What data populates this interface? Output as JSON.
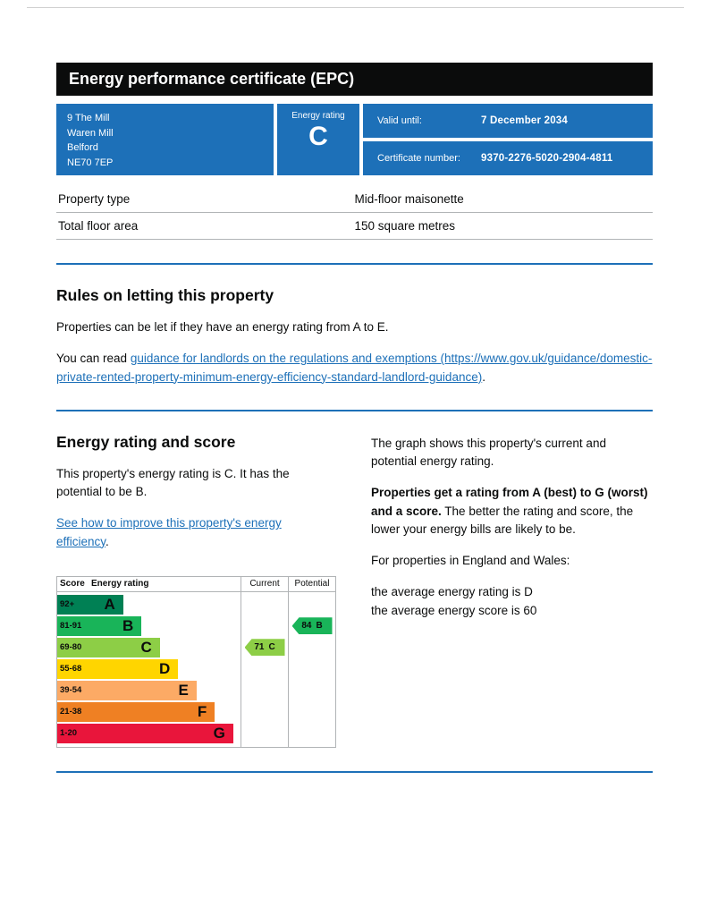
{
  "header": {
    "title": "Energy performance certificate (EPC)"
  },
  "summary": {
    "address": [
      "9 The Mill",
      "Waren Mill",
      "Belford",
      "NE70 7EP"
    ],
    "rating_label": "Energy rating",
    "rating": "C",
    "valid_until_label": "Valid until:",
    "valid_until": "7 December 2034",
    "cert_number_label": "Certificate number:",
    "cert_number": "9370-2276-5020-2904-4811"
  },
  "property": {
    "type_label": "Property type",
    "type_value": "Mid-floor maisonette",
    "area_label": "Total floor area",
    "area_value": "150 square metres"
  },
  "rules": {
    "heading": "Rules on letting this property",
    "para1": "Properties can be let if they have an energy rating from A to E.",
    "para2_prefix": "You can read ",
    "para2_link": "guidance for landlords on the regulations and exemptions (https://www.gov.uk/guidance/domestic-private-rented-property-minimum-energy-efficiency-standard-landlord-guidance)",
    "para2_suffix": "."
  },
  "rating_section": {
    "heading": "Energy rating and score",
    "para1": "This property's energy rating is C. It has the potential to be B.",
    "link": "See how to improve this property's energy efficiency",
    "link_suffix": ".",
    "right_para1": "The graph shows this property's current and potential energy rating.",
    "right_para2_bold": "Properties get a rating from A (best) to G (worst) and a score.",
    "right_para2_rest": " The better the rating and score, the lower your energy bills are likely to be.",
    "right_para3": "For properties in England and Wales:",
    "right_para4": "the average energy rating is D",
    "right_para5": "the average energy score is 60"
  },
  "chart_data": {
    "type": "bar",
    "variant": "epc-energy-rating-bands",
    "columns": [
      "Score",
      "Energy rating",
      "Current",
      "Potential"
    ],
    "bands": [
      {
        "score": "92+",
        "letter": "A",
        "color": "#008054",
        "width_pct": 36
      },
      {
        "score": "81-91",
        "letter": "B",
        "color": "#19b459",
        "width_pct": 46
      },
      {
        "score": "69-80",
        "letter": "C",
        "color": "#8dce46",
        "width_pct": 56
      },
      {
        "score": "55-68",
        "letter": "D",
        "color": "#ffd500",
        "width_pct": 66
      },
      {
        "score": "39-54",
        "letter": "E",
        "color": "#fcaa65",
        "width_pct": 76
      },
      {
        "score": "21-38",
        "letter": "F",
        "color": "#ef8023",
        "width_pct": 86
      },
      {
        "score": "1-20",
        "letter": "G",
        "color": "#e9153b",
        "width_pct": 96
      }
    ],
    "current": {
      "score": 71,
      "letter": "C",
      "band_index": 2,
      "color": "#8dce46"
    },
    "potential": {
      "score": 84,
      "letter": "B",
      "band_index": 1,
      "color": "#19b459"
    }
  },
  "colors": {
    "govuk_blue": "#1d70b8",
    "border_gray": "#b1b4b6",
    "ink": "#0b0c0c"
  }
}
